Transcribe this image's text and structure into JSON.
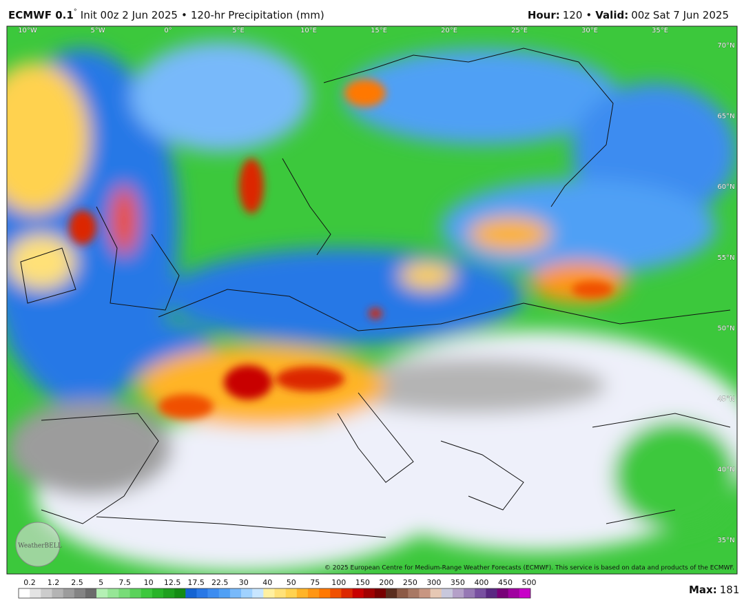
{
  "header": {
    "model": "ECMWF 0.1",
    "degree": "°",
    "init": "Init 00z 2 Jun 2025",
    "separator": "•",
    "product": "120-hr Precipitation (mm)",
    "hour_label": "Hour:",
    "hour": 120,
    "valid_label": "Valid:",
    "valid": "00z Sat 7 Jun 2025"
  },
  "map": {
    "longitude_labels": [
      "10°W",
      "5°W",
      "0°",
      "5°E",
      "10°E",
      "15°E",
      "20°E",
      "25°E",
      "30°E",
      "35°E"
    ],
    "latitude_labels": [
      "70°N",
      "65°N",
      "60°N",
      "55°N",
      "50°N",
      "45°N",
      "40°N",
      "35°N"
    ],
    "logo": "WeatherBELL",
    "copyright": "© 2025 European Centre for Medium-Range Weather Forecasts (ECMWF). This service is based on data and products of the ECMWF."
  },
  "legend": {
    "ticks": [
      0.2,
      1.2,
      2.5,
      5,
      7.5,
      10,
      12.5,
      17.5,
      22.5,
      30,
      40,
      50,
      75,
      100,
      150,
      200,
      250,
      300,
      350,
      400,
      450,
      500
    ],
    "colors": [
      "#ffffff",
      "#e4e4e4",
      "#cccccc",
      "#b4b4b4",
      "#9c9c9c",
      "#848484",
      "#6c6c6c",
      "#b4f0b4",
      "#96e696",
      "#78dc78",
      "#5ad25a",
      "#3cc83c",
      "#28b428",
      "#1ea01e",
      "#148c14",
      "#1464d2",
      "#2878e6",
      "#3c8cf0",
      "#50a0f5",
      "#78b9fa",
      "#a0d2ff",
      "#c8e6ff",
      "#fff0a0",
      "#ffe178",
      "#ffd250",
      "#ffb428",
      "#ff9614",
      "#ff7800",
      "#f05000",
      "#dc2800",
      "#c80000",
      "#a00000",
      "#780000",
      "#5a2d1e",
      "#8c5a46",
      "#a87864",
      "#c89682",
      "#e6c8b4",
      "#c8c8dc",
      "#b4a0c8",
      "#9678b4",
      "#7850a0",
      "#5a2882",
      "#780078",
      "#a000a0",
      "#c800c8"
    ],
    "max_label": "Max:",
    "max": 181
  }
}
